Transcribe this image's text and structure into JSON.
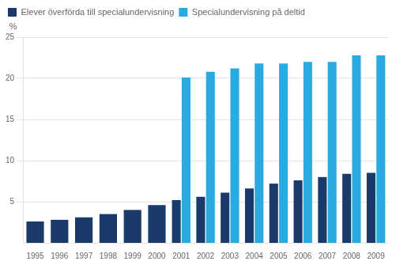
{
  "chart_data": {
    "type": "bar",
    "categories": [
      "1995",
      "1996",
      "1997",
      "1998",
      "1999",
      "2000",
      "2001",
      "2002",
      "2003",
      "2004",
      "2005",
      "2006",
      "2007",
      "2008",
      "2009"
    ],
    "series": [
      {
        "name": "Elever överförda till specialundervisning",
        "color": "#1a3a6b",
        "values": [
          2.6,
          2.8,
          3.1,
          3.5,
          4.0,
          4.6,
          5.2,
          5.6,
          6.1,
          6.6,
          7.2,
          7.6,
          8.0,
          8.4,
          8.5
        ]
      },
      {
        "name": "Specialundervisning på deltid",
        "color": "#29abe2",
        "values": [
          null,
          null,
          null,
          null,
          null,
          null,
          20.1,
          20.8,
          21.2,
          21.8,
          21.8,
          22.0,
          22.0,
          22.8,
          22.8
        ]
      }
    ],
    "ylabel": "%",
    "ylim": [
      0,
      25
    ],
    "yticks": [
      5,
      10,
      15,
      20,
      25
    ],
    "grid": true,
    "legend": "upper left"
  }
}
